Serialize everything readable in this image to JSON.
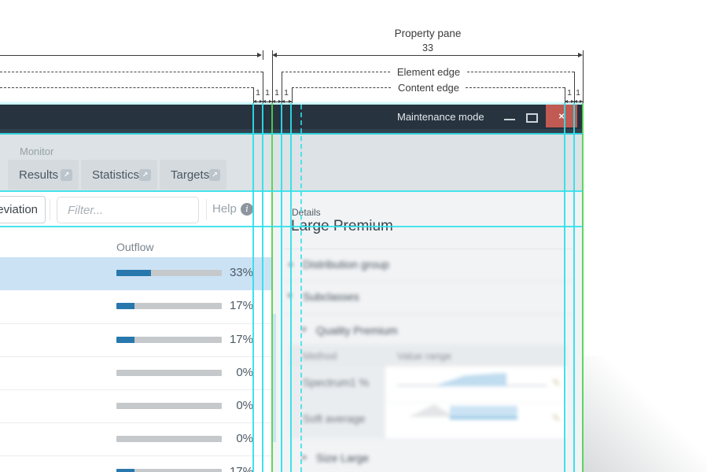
{
  "colors": {
    "guide_cyan": "#2ee0ea",
    "guide_green": "#4fd44f",
    "bar_blue": "#2878ae",
    "bar_track": "#c6c9cb",
    "row_highlight": "#cbe2f4",
    "close_red": "#c05a52",
    "title_bar": "#27333f"
  },
  "annotations": {
    "property_pane": {
      "label": "Property pane",
      "width_value": "33"
    },
    "element_edge_label": "Element edge",
    "content_edge_label": "Content edge",
    "gap_labels_left": [
      "1",
      "1",
      "1",
      "1"
    ],
    "gap_labels_right": [
      "1",
      "1"
    ]
  },
  "window": {
    "title": "Maintenance mode"
  },
  "icons": {
    "popout": "↗",
    "info": "i",
    "close": "×",
    "collapsed": "▸",
    "expanded": "▾",
    "pencil": "✎"
  },
  "monitor": {
    "section_label": "Monitor",
    "tabs": [
      {
        "label": "Results"
      },
      {
        "label": "Statistics"
      },
      {
        "label": "Targets"
      }
    ]
  },
  "toolbar": {
    "chip_label": "eviation",
    "filter_placeholder": "Filter...",
    "help_label": "Help"
  },
  "table": {
    "column_header": "Outflow",
    "rows": [
      {
        "label": "33%",
        "percent": 33,
        "highlighted": true
      },
      {
        "label": "17%",
        "percent": 17,
        "highlighted": false
      },
      {
        "label": "17%",
        "percent": 17,
        "highlighted": false
      },
      {
        "label": "0%",
        "percent": 0,
        "highlighted": false
      },
      {
        "label": "0%",
        "percent": 0,
        "highlighted": false
      },
      {
        "label": "0%",
        "percent": 0,
        "highlighted": false
      },
      {
        "label": "17%",
        "percent": 17,
        "highlighted": false
      }
    ]
  },
  "details_panel": {
    "section_label": "Details",
    "title": "Large Premium",
    "tree": {
      "distribution_group": "Distribution group",
      "subclasses": "Subclasses",
      "quality_premium": "Quality Premium",
      "size_large": "Size Large"
    },
    "subtable": {
      "headers": [
        "Method",
        "Value range"
      ],
      "rows": [
        {
          "method": "Spectrum1 %"
        },
        {
          "method": "Soft average"
        }
      ]
    }
  }
}
